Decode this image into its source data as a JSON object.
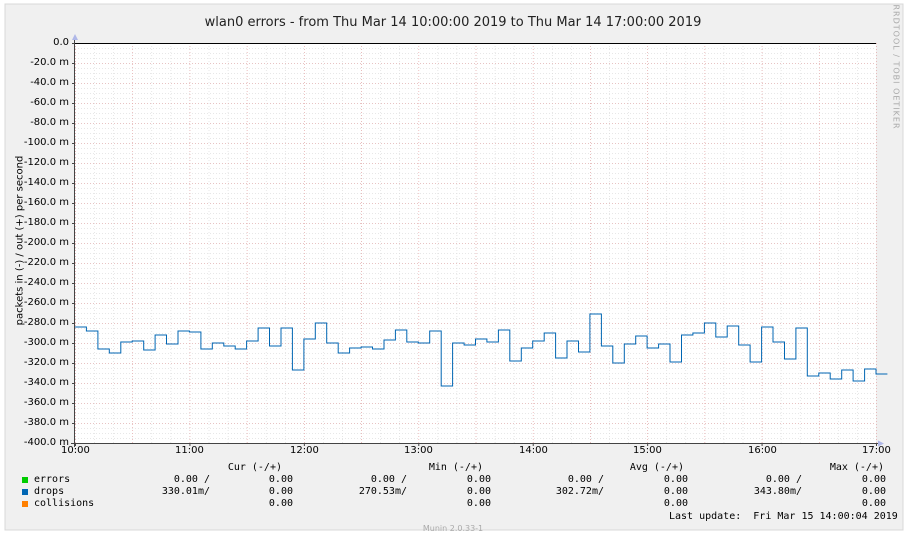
{
  "chart_data": {
    "type": "line",
    "title": "wlan0 errors - from Thu Mar 14 10:00:00 2019 to Thu Mar 14 17:00:00 2019",
    "ylabel": "packets in (-) / out (+) per second",
    "ylim": [
      -400,
      0
    ],
    "y_unit": "m",
    "y_ticks": [
      "0.0",
      "-20.0 m",
      "-40.0 m",
      "-60.0 m",
      "-80.0 m",
      "-100.0 m",
      "-120.0 m",
      "-140.0 m",
      "-160.0 m",
      "-180.0 m",
      "-200.0 m",
      "-220.0 m",
      "-240.0 m",
      "-260.0 m",
      "-280.0 m",
      "-300.0 m",
      "-320.0 m",
      "-340.0 m",
      "-360.0 m",
      "-380.0 m",
      "-400.0 m"
    ],
    "x_ticks": [
      "10:00",
      "11:00",
      "12:00",
      "13:00",
      "14:00",
      "15:00",
      "16:00",
      "17:00"
    ],
    "grid": true,
    "series": [
      {
        "name": "errors",
        "color": "#00cc00",
        "values_in": [
          0
        ],
        "values_out": [
          0
        ]
      },
      {
        "name": "drops",
        "color": "#0066b3",
        "x": [
          10.0,
          10.1,
          10.2,
          10.3,
          10.4,
          10.5,
          10.6,
          10.7,
          10.8,
          10.9,
          11.0,
          11.1,
          11.2,
          11.3,
          11.4,
          11.5,
          11.6,
          11.7,
          11.8,
          11.9,
          12.0,
          12.1,
          12.2,
          12.3,
          12.4,
          12.5,
          12.6,
          12.7,
          12.8,
          12.9,
          13.0,
          13.1,
          13.2,
          13.3,
          13.4,
          13.5,
          13.6,
          13.7,
          13.8,
          13.9,
          14.0,
          14.1,
          14.2,
          14.3,
          14.4,
          14.5,
          14.6,
          14.7,
          14.8,
          14.9,
          15.0,
          15.1,
          15.2,
          15.3,
          15.4,
          15.5,
          15.6,
          15.7,
          15.8,
          15.9,
          16.0,
          16.1,
          16.2,
          16.3,
          16.4,
          16.5,
          16.6,
          16.7,
          16.8,
          16.9,
          17.0
        ],
        "values_in": [
          -284,
          -288,
          -306,
          -310,
          -299,
          -298,
          -307,
          -292,
          -301,
          -288,
          -289,
          -306,
          -300,
          -303,
          -306,
          -298,
          -285,
          -303,
          -285,
          -327,
          -296,
          -280,
          -300,
          -310,
          -305,
          -304,
          -306,
          -297,
          -287,
          -299,
          -300,
          -288,
          -343,
          -300,
          -302,
          -296,
          -299,
          -287,
          -318,
          -305,
          -298,
          -290,
          -315,
          -298,
          -309,
          -271,
          -303,
          -320,
          -301,
          -293,
          -305,
          -301,
          -319,
          -292,
          -290,
          -280,
          -294,
          -283,
          -302,
          -319,
          -284,
          -299,
          -316,
          -285,
          -333,
          -330,
          -336,
          -327,
          -338,
          -326,
          -331
        ],
        "values_out": [
          0
        ]
      },
      {
        "name": "collisions",
        "color": "#ff8000",
        "values_out": [
          0
        ]
      }
    ],
    "legend": {
      "headers": [
        "Cur (-/+)",
        "Min (-/+)",
        "Avg (-/+)",
        "Max (-/+)"
      ],
      "rows": [
        {
          "name": "errors",
          "cur_in": "0.00 /",
          "cur_out": "0.00",
          "min_in": "0.00 /",
          "min_out": "0.00",
          "avg_in": "0.00 /",
          "avg_out": "0.00",
          "max_in": "0.00 /",
          "max_out": "0.00"
        },
        {
          "name": "drops",
          "cur_in": "330.01m/",
          "cur_out": "0.00",
          "min_in": "270.53m/",
          "min_out": "0.00",
          "avg_in": "302.72m/",
          "avg_out": "0.00",
          "max_in": "343.80m/",
          "max_out": "0.00"
        },
        {
          "name": "collisions",
          "cur_in": "",
          "cur_out": "0.00",
          "min_in": "",
          "min_out": "0.00",
          "avg_in": "",
          "avg_out": "0.00",
          "max_in": "",
          "max_out": "0.00"
        }
      ]
    },
    "last_update": "Last update:  Fri Mar 15 14:00:04 2019",
    "watermark": "RRDTOOL / TOBI OETIKER",
    "munin_version": "Munin 2.0.33-1"
  }
}
